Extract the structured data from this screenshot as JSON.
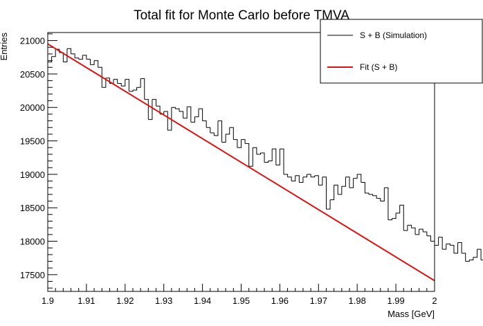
{
  "chart_data": {
    "type": "histogram",
    "title": "Total fit for Monte Carlo before TMVA",
    "xlabel": "Mass [GeV]",
    "ylabel": "Entries",
    "xlim": [
      1.9,
      2.0
    ],
    "ylim": [
      17250,
      21120
    ],
    "x_ticks": [
      1.9,
      1.91,
      1.92,
      1.93,
      1.94,
      1.95,
      1.96,
      1.97,
      1.98,
      1.99,
      2.0
    ],
    "x_tick_labels": [
      "1.9",
      "1.91",
      "1.92",
      "1.93",
      "1.94",
      "1.95",
      "1.96",
      "1.97",
      "1.98",
      "1.99",
      "2"
    ],
    "y_ticks": [
      17500,
      18000,
      18500,
      19000,
      19500,
      20000,
      20500,
      21000
    ],
    "y_tick_labels": [
      "17500",
      "18000",
      "18500",
      "19000",
      "19500",
      "20000",
      "20500",
      "21000"
    ],
    "legend_position": "top-right",
    "series": [
      {
        "name": "S + B (Simulation)",
        "kind": "histogram",
        "color": "#000000",
        "bin_low": 1.9,
        "bin_width": 0.001,
        "values": [
          20680,
          20760,
          20870,
          20820,
          20680,
          20880,
          20800,
          20740,
          20720,
          20780,
          20720,
          20640,
          20700,
          20600,
          20300,
          20440,
          20360,
          20420,
          20360,
          20320,
          20420,
          20240,
          20260,
          20300,
          20430,
          20120,
          19820,
          20120,
          20020,
          19900,
          19940,
          19660,
          20000,
          19980,
          19940,
          19840,
          20010,
          19780,
          19860,
          19980,
          19800,
          19700,
          19620,
          19580,
          19800,
          19480,
          19600,
          19700,
          19520,
          19400,
          19520,
          19460,
          19120,
          19400,
          19300,
          19320,
          19180,
          19200,
          19380,
          19140,
          19380,
          19000,
          18960,
          18900,
          18980,
          18880,
          18960,
          19000,
          18960,
          18980,
          18840,
          18960,
          18480,
          18620,
          18840,
          18700,
          18820,
          18960,
          18800,
          18940,
          19000,
          18880,
          18720,
          18700,
          18680,
          18640,
          18600,
          18800,
          18320,
          18340,
          18420,
          18540,
          18160,
          18240,
          18200,
          18100,
          18180,
          18140,
          18080,
          18000,
          17940,
          18060,
          17880,
          17960,
          17940,
          17820,
          17980,
          17820,
          17700,
          17720,
          17760,
          17880,
          17720,
          17400,
          17620,
          17480,
          17560,
          17680,
          17480,
          17600,
          17450
        ]
      },
      {
        "name": "Fit (S + B)",
        "kind": "line",
        "color": "#e01010",
        "x": [
          1.9,
          2.0
        ],
        "y": [
          20950,
          17410
        ]
      }
    ]
  }
}
